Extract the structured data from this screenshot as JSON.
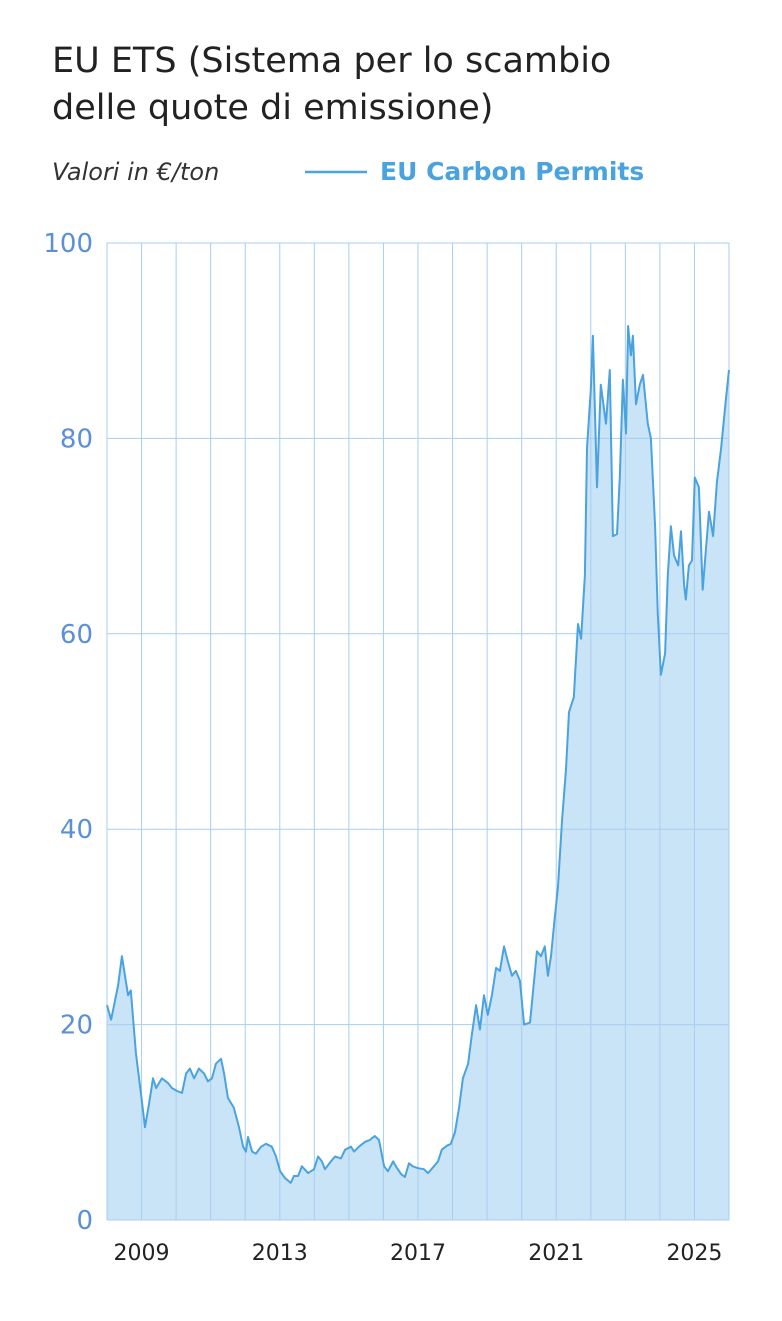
{
  "chart_data": {
    "type": "area",
    "title": [
      "EU ETS (Sistema per lo scambio",
      "delle quote di emissione)"
    ],
    "subtitle": "Valori in €/ton",
    "series": [
      {
        "name": "EU Carbon Permits",
        "color": "#4aa3df",
        "fill": "#c9e3f7",
        "x": [
          2008.0,
          2008.12,
          2008.32,
          2008.43,
          2008.52,
          2008.61,
          2008.69,
          2008.84,
          2008.98,
          2009.1,
          2009.22,
          2009.33,
          2009.42,
          2009.59,
          2009.77,
          2009.88,
          2010.03,
          2010.17,
          2010.29,
          2010.4,
          2010.52,
          2010.66,
          2010.81,
          2010.92,
          2011.04,
          2011.15,
          2011.3,
          2011.39,
          2011.5,
          2011.67,
          2011.82,
          2011.94,
          2012.02,
          2012.08,
          2012.2,
          2012.31,
          2012.46,
          2012.6,
          2012.77,
          2012.89,
          2013.01,
          2013.15,
          2013.32,
          2013.41,
          2013.53,
          2013.64,
          2013.82,
          2013.99,
          2014.11,
          2014.22,
          2014.31,
          2014.48,
          2014.6,
          2014.77,
          2014.89,
          2015.06,
          2015.15,
          2015.29,
          2015.47,
          2015.61,
          2015.75,
          2015.87,
          2016.02,
          2016.13,
          2016.28,
          2016.36,
          2016.51,
          2016.62,
          2016.74,
          2016.85,
          2017.0,
          2017.17,
          2017.29,
          2017.46,
          2017.58,
          2017.69,
          2017.84,
          2017.95,
          2018.07,
          2018.19,
          2018.3,
          2018.45,
          2018.56,
          2018.68,
          2018.79,
          2018.91,
          2019.02,
          2019.14,
          2019.26,
          2019.37,
          2019.49,
          2019.6,
          2019.72,
          2019.83,
          2019.95,
          2020.07,
          2020.24,
          2020.44,
          2020.56,
          2020.67,
          2020.76,
          2020.85,
          2020.96,
          2021.05,
          2021.17,
          2021.28,
          2021.37,
          2021.51,
          2021.63,
          2021.72,
          2021.83,
          2021.89,
          2022.0,
          2022.06,
          2022.18,
          2022.29,
          2022.44,
          2022.55,
          2022.64,
          2022.76,
          2022.84,
          2022.93,
          2023.02,
          2023.08,
          2023.16,
          2023.22,
          2023.31,
          2023.42,
          2023.51,
          2023.65,
          2023.74,
          2023.86,
          2023.94,
          2024.03,
          2024.15,
          2024.23,
          2024.32,
          2024.41,
          2024.53,
          2024.61,
          2024.7,
          2024.75,
          2024.84,
          2024.93,
          2025.01,
          2025.13,
          2025.24,
          2025.33,
          2025.42,
          2025.54,
          2025.65,
          2025.77,
          2025.91,
          2026.0
        ],
        "values": [
          22,
          20.5,
          24,
          27,
          25,
          23,
          23.5,
          17,
          13,
          9.5,
          12,
          14.5,
          13.5,
          14.5,
          14,
          13.5,
          13.2,
          13,
          15,
          15.5,
          14.5,
          15.5,
          15,
          14.2,
          14.5,
          16,
          16.5,
          15,
          12.5,
          11.5,
          9.5,
          7.5,
          7,
          8.5,
          7,
          6.8,
          7.5,
          7.8,
          7.5,
          6.5,
          5,
          4.3,
          3.8,
          4.5,
          4.5,
          5.5,
          4.8,
          5.2,
          6.5,
          6,
          5.2,
          6,
          6.5,
          6.3,
          7.2,
          7.5,
          7,
          7.5,
          8,
          8.2,
          8.6,
          8.2,
          5.5,
          5,
          6,
          5.5,
          4.7,
          4.4,
          5.8,
          5.5,
          5.3,
          5.2,
          4.8,
          5.5,
          6,
          7.2,
          7.6,
          7.8,
          9,
          11.5,
          14.5,
          16,
          19,
          22,
          19.5,
          23,
          21,
          23,
          25.8,
          25.5,
          28,
          26.5,
          25,
          25.5,
          24.5,
          20,
          20.2,
          27.5,
          27,
          28,
          25,
          27,
          31,
          34,
          41,
          46,
          52,
          53.5,
          61,
          59.5,
          66,
          79,
          85,
          90.5,
          75,
          85.5,
          81.5,
          87,
          70,
          70.2,
          76,
          86,
          80.5,
          91.5,
          88.5,
          90.5,
          83.5,
          85.5,
          86.5,
          81.5,
          80,
          71,
          62,
          55.8,
          58,
          66,
          71,
          68,
          67,
          70.5,
          65,
          63.5,
          67,
          67.5,
          76,
          75,
          64.5,
          68.5,
          72.5,
          70,
          75.5,
          79,
          84,
          87
        ]
      }
    ],
    "xlim": [
      2008,
      2026
    ],
    "xticks": [
      2009,
      2013,
      2017,
      2021,
      2025
    ],
    "xgrid": [
      2008,
      2009,
      2010,
      2011,
      2012,
      2013,
      2014,
      2015,
      2016,
      2017,
      2018,
      2019,
      2020,
      2021,
      2022,
      2023,
      2024,
      2025,
      2026
    ],
    "ylim": [
      0,
      100
    ],
    "yticks": [
      0,
      20,
      40,
      60,
      80,
      100
    ],
    "grid": true,
    "grid_color": "#a9cdef",
    "legend": "top"
  }
}
